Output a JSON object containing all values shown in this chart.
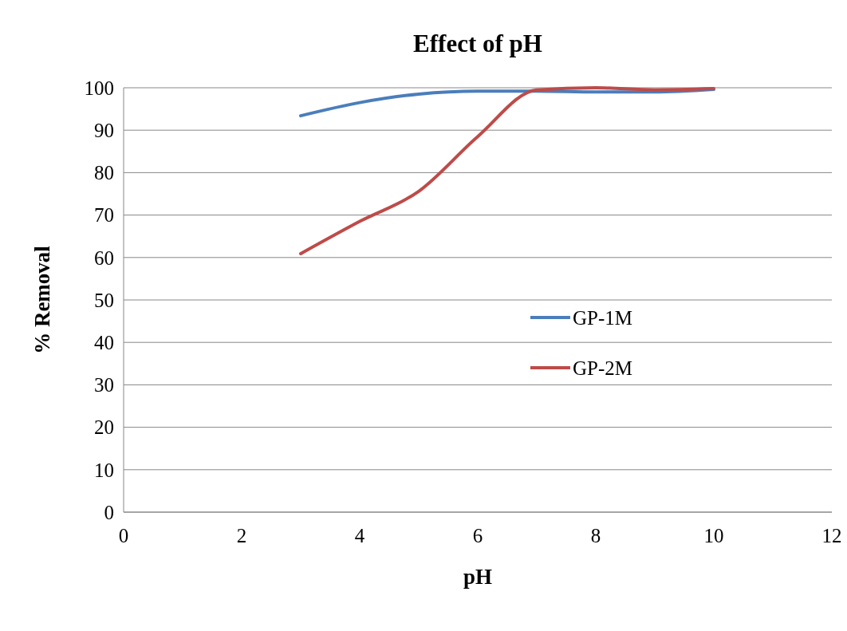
{
  "chart_data": {
    "type": "line",
    "title": "Effect of pH",
    "xlabel": "pH",
    "ylabel": "% Removal",
    "x": [
      3,
      4,
      5,
      6,
      7,
      8,
      9,
      10
    ],
    "series": [
      {
        "name": "GP-1M",
        "color": "#4a7ebb",
        "values": [
          93.4,
          96.5,
          98.5,
          99.2,
          99.2,
          99,
          99,
          99.6
        ]
      },
      {
        "name": "GP-2M",
        "color": "#be4b48",
        "values": [
          60.9,
          68.5,
          75.6,
          88.5,
          99.5,
          100,
          99.5,
          99.8
        ]
      }
    ],
    "xlim": [
      0,
      12
    ],
    "xticks": [
      0,
      2,
      4,
      6,
      8,
      10,
      12
    ],
    "ylim": [
      0,
      100
    ],
    "yticks": [
      0,
      10,
      20,
      30,
      40,
      50,
      60,
      70,
      80,
      90,
      100
    ],
    "grid": "y",
    "legend": "right",
    "marker": "none",
    "line_style": "solid"
  }
}
